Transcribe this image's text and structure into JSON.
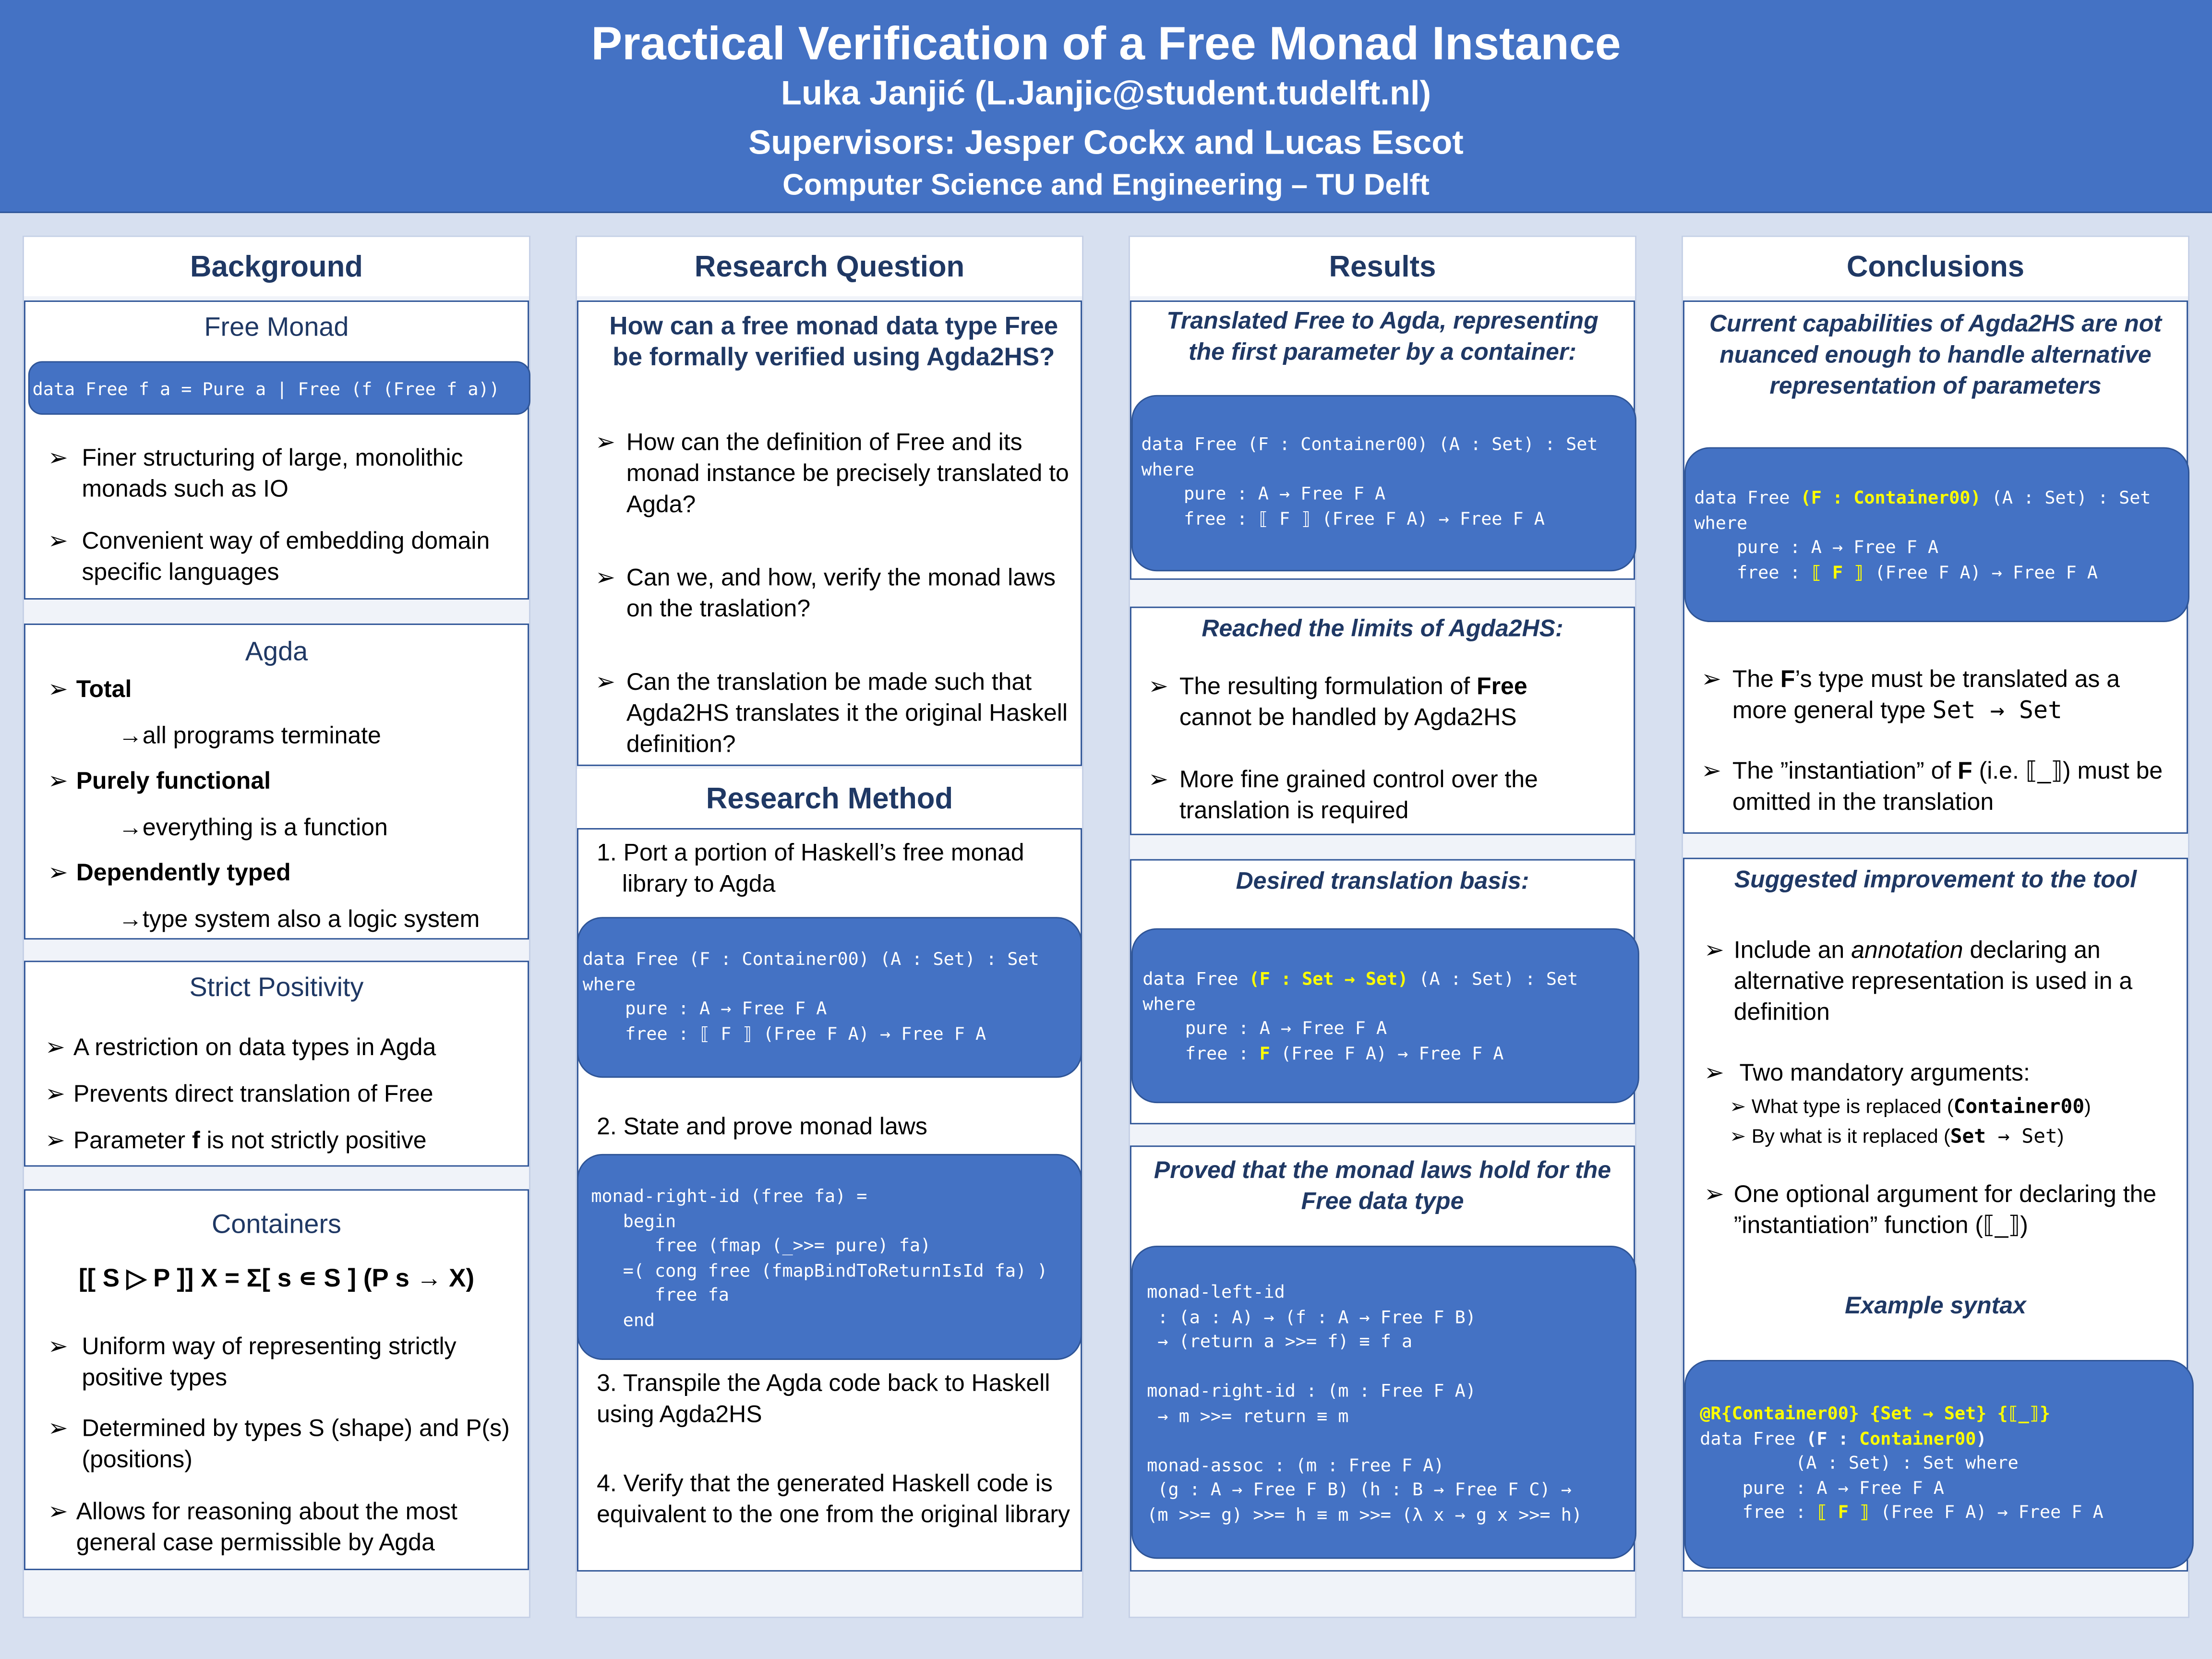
{
  "header": {
    "title": "Practical Verification of a Free Monad Instance",
    "author": "Luka Janjić (L.Janjic@student.tudelft.nl)",
    "supervisors": "Supervisors: Jesper Cockx and Lucas Escot",
    "affiliation": "Computer Science and Engineering – TU Delft"
  },
  "background": {
    "title": "Background",
    "free_monad": {
      "title": "Free Monad",
      "code": "data Free f a = Pure a | Free (f (Free f a))",
      "items": [
        "Finer structuring of large, monolithic monads such as IO",
        "Convenient way of embedding domain specific languages"
      ]
    },
    "agda": {
      "title": "Agda",
      "items": [
        {
          "label": "Total",
          "sub": "→all programs terminate"
        },
        {
          "label": "Purely functional",
          "sub": "→everything is a function"
        },
        {
          "label": "Dependently typed",
          "sub": "→type system also a logic system"
        }
      ]
    },
    "strict_positivity": {
      "title": "Strict Positivity",
      "items": [
        "A restriction on data types in Agda",
        "Prevents direct translation of Free"
      ],
      "param_pre": "Parameter ",
      "param_bold": "f",
      "param_post": " is not strictly positive"
    },
    "containers": {
      "title": "Containers",
      "formula": "[[ S ▷ P ]] X = Σ[ s ∊ S ] (P s → X)",
      "items": [
        "Uniform way of representing strictly positive types",
        "Determined by types S (shape) and P(s) (positions)",
        "Allows for reasoning about the most general case permissible by Agda"
      ]
    }
  },
  "research_question": {
    "title": "Research Question",
    "question": "How can a free monad data type Free be formally verified using Agda2HS?",
    "items": [
      "How can the definition of Free and its monad instance be precisely translated to Agda?",
      "Can we, and how, verify the monad laws on the traslation?",
      "Can the translation be made such that Agda2HS translates it the original Haskell definition?"
    ]
  },
  "research_method": {
    "title": "Research Method",
    "step1": "1. Port a portion of Haskell’s free monad library to Agda",
    "code1": "data Free (F : Container00) (A : Set) : Set\nwhere\n    pure : A → Free F A\n    free : ⟦ F ⟧ (Free F A) → Free F A",
    "step2": "2. State and prove monad laws",
    "code2": "monad-right-id (free fa) =\n   begin\n      free (fmap (_>>= pure) fa)\n   =( cong free (fmapBindToReturnIsId fa) )\n      free fa\n   end",
    "step3": "3. Transpile the Agda code back to Haskell using Agda2HS",
    "step4": "4. Verify that the generated Haskell code is equivalent to the one from the original library"
  },
  "results": {
    "title": "Results",
    "box1_title": "Translated Free to Agda, representing the first parameter by a container:",
    "code1": "data Free (F : Container00) (A : Set) : Set\nwhere\n    pure : A → Free F A\n    free : ⟦ F ⟧ (Free F A) → Free F A",
    "box2_title": "Reached the limits of Agda2HS:",
    "box2_item1_pre": "The resulting formulation of ",
    "box2_item1_bold": "Free",
    "box2_item1_post": " cannot be handled by Agda2HS",
    "box2_item2": "More fine grained control over the translation is required",
    "box3_title": "Desired translation basis:",
    "box3_code": {
      "l1a": "data Free ",
      "l1y": "(F : Set → Set)",
      "l1b": " (A : Set) : Set",
      "l2": "where",
      "l3": "    pure : A → Free F A",
      "l4a": "    free : ",
      "l4y": "F",
      "l4b": " (Free F A) → Free F A"
    },
    "box4_title": "Proved that the monad laws hold for the Free data type",
    "code4": "monad-left-id\n : (a : A) → (f : A → Free F B)\n → (return a >>= f) ≡ f a\n\nmonad-right-id : (m : Free F A)\n → m >>= return ≡ m\n\nmonad-assoc : (m : Free F A)\n (g : A → Free F B) (h : B → Free F C) →\n(m >>= g) >>= h ≡ m >>= (λ x → g x >>= h)"
  },
  "conclusions": {
    "title": "Conclusions",
    "box1_title": "Current capabilities of Agda2HS are not nuanced enough to handle alternative representation of parameters",
    "box1_code": {
      "l1a": "data Free ",
      "l1y": "(F : Container00)",
      "l1b": " (A : Set) : Set",
      "l2": "where",
      "l3": "    pure : A → Free F A",
      "l4a": "    free : ",
      "l4y": "⟦ F ⟧",
      "l4b": " (Free F A) → Free F A"
    },
    "box1_item1_pre": "The ",
    "box1_item1_bold": "F",
    "box1_item1_mid": "’s type must be translated as a more general type ",
    "box1_item1_code": "Set → Set",
    "box1_item2_pre": "The ”instantiation” of ",
    "box1_item2_bold": "F",
    "box1_item2_post": " (i.e. ⟦_⟧) must be omitted in the translation",
    "box2_title": "Suggested improvement to the tool",
    "box2_item1_pre": "Include an ",
    "box2_item1_em": "annotation",
    "box2_item1_post": " declaring an alternative representation is used in a definition",
    "box2_item2": "Two mandatory arguments:",
    "box2_sub1_pre": "What type is replaced (",
    "box2_sub1_code": "Container00",
    "box2_sub1_post": ")",
    "box2_sub2_pre": "By what is it replaced (",
    "box2_sub2_code1": "Set",
    "box2_sub2_code2": " → Set",
    "box2_sub2_post": ")",
    "box2_item3": "One optional argument for declaring the ”instantiation” function (⟦_⟧)",
    "example_title": "Example syntax",
    "example_code": {
      "l1": "@R{Container00} {Set → Set} {⟦_⟧}",
      "l2a": "data Free ",
      "l2b": "(F : ",
      "l2y": "Container00",
      "l2c": ")",
      "l3": "         (A : Set) : Set where",
      "l4": "    pure : A → Free F A",
      "l5a": "    free : ",
      "l5y": "⟦ F ⟧",
      "l5b": " (Free F A) → Free F A"
    }
  },
  "bullet": "➢",
  "bullet_small": "➢"
}
